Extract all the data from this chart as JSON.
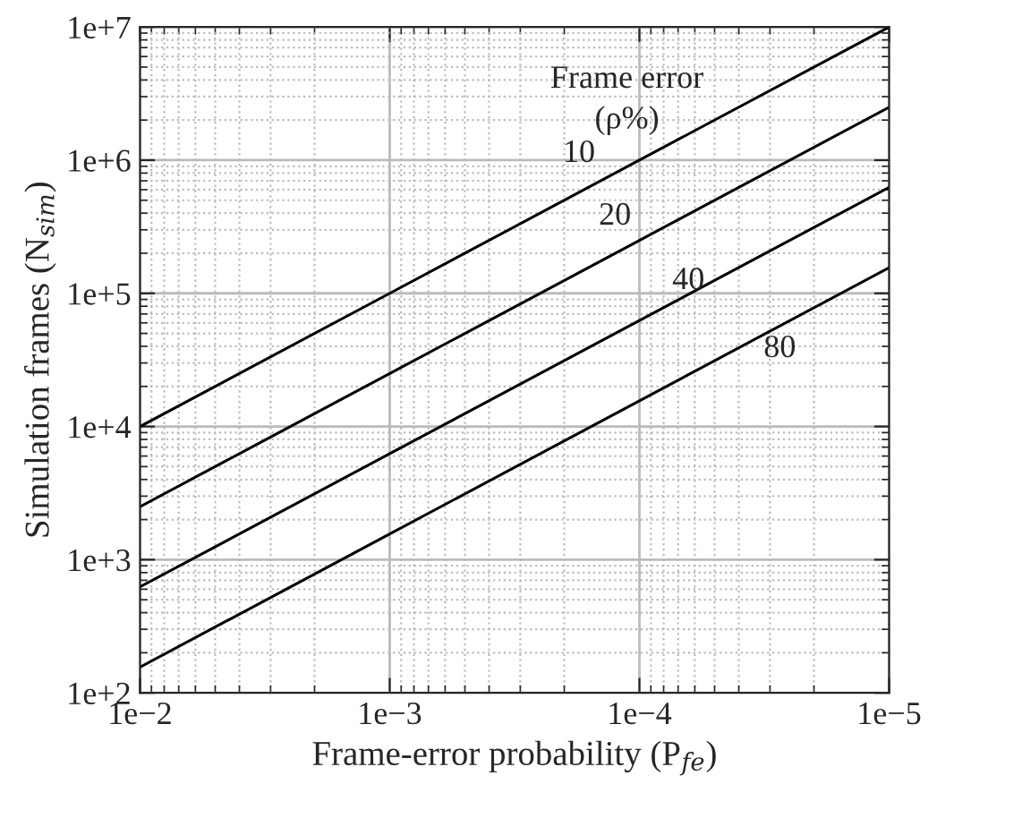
{
  "chart_data": {
    "type": "line",
    "xlabel": "Frame-error probability (P$_{fe}$)",
    "ylabel": "Simulation frames (N$_{sim}$)",
    "x": [
      0.01,
      0.001,
      0.0001,
      1e-05
    ],
    "series": [
      {
        "color": "#000000",
        "values": [
          10000,
          100000,
          1000000,
          10000000
        ]
      },
      {
        "color": "#000000",
        "values": [
          2500,
          25000,
          250000,
          2500000
        ]
      },
      {
        "color": "#000000",
        "values": [
          625,
          6250,
          62500,
          625000
        ]
      },
      {
        "color": "#000000",
        "values": [
          156,
          1560,
          15600,
          156000
        ]
      }
    ],
    "annotations": [
      "Frame error\n(ρ%)",
      "10",
      "20",
      "40",
      "80"
    ],
    "log": "xy",
    "xlim": [
      0.01,
      1e-05
    ],
    "ylim": [
      100,
      10000000
    ],
    "xticks": [
      {
        "value": 0.01,
        "label": "1e−2"
      },
      {
        "value": 0.001,
        "label": "1e−3"
      },
      {
        "value": 0.0001,
        "label": "1e−4"
      },
      {
        "value": 1e-05,
        "label": "1e−5"
      }
    ],
    "yticks": [
      {
        "value": 100,
        "label": "1e+2"
      },
      {
        "value": 1000,
        "label": "1e+3"
      },
      {
        "value": 10000,
        "label": "1e+4"
      },
      {
        "value": 100000,
        "label": "1e+5"
      },
      {
        "value": 1000000,
        "label": "1e+6"
      },
      {
        "value": 10000000,
        "label": "1e+7"
      }
    ],
    "grid": true,
    "marker": "none",
    "line_style": "solid",
    "legend": false
  }
}
